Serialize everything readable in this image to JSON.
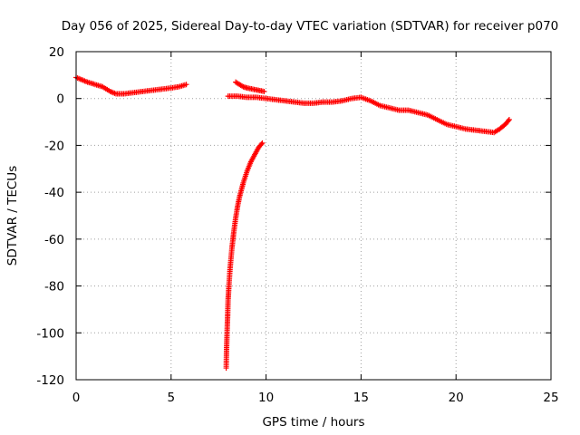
{
  "chart_data": {
    "type": "scatter",
    "title": "Day 056 of 2025, Sidereal Day-to-day VTEC variation (SDTVAR) for receiver p070",
    "xlabel": "GPS time / hours",
    "ylabel": "SDTVAR / TECUs",
    "xlim": [
      0,
      25
    ],
    "ylim": [
      -120,
      20
    ],
    "xticks": [
      "0",
      "5",
      "10",
      "15",
      "20",
      "25"
    ],
    "yticks": [
      "20",
      "0",
      "-20",
      "-40",
      "-60",
      "-80",
      "-100",
      "-120"
    ],
    "grid": true,
    "marker": "+",
    "color": "#ff0000",
    "series": [
      {
        "name": "segment-1",
        "x": [
          0.0,
          0.3,
          0.6,
          1.0,
          1.4,
          1.8,
          2.1,
          2.5,
          3.0,
          3.5,
          4.0,
          4.5,
          5.0,
          5.4,
          5.8
        ],
        "y": [
          9,
          8,
          7,
          6,
          5,
          3,
          2,
          2,
          2.5,
          3,
          3.5,
          4,
          4.5,
          5,
          6
        ]
      },
      {
        "name": "segment-2",
        "x": [
          8.4,
          8.6,
          8.8,
          9.0,
          9.3,
          9.6,
          9.9
        ],
        "y": [
          7,
          6,
          5,
          4.5,
          4,
          3.5,
          3
        ]
      },
      {
        "name": "segment-3",
        "x": [
          8.0,
          8.5,
          9.0,
          9.5,
          10.0,
          10.5,
          11.0,
          11.5,
          12.0,
          12.5,
          13.0,
          13.5,
          14.0,
          14.5,
          15.0,
          15.5,
          16.0,
          16.5,
          17.0,
          17.5,
          18.0,
          18.5,
          19.0,
          19.5,
          20.0,
          20.5,
          21.0,
          21.5,
          22.0,
          22.3,
          22.6,
          22.8
        ],
        "y": [
          1,
          1,
          0.5,
          0.5,
          0,
          -0.5,
          -1,
          -1.5,
          -2,
          -2,
          -1.5,
          -1.5,
          -1,
          0,
          0.5,
          -1,
          -3,
          -4,
          -5,
          -5,
          -6,
          -7,
          -9,
          -11,
          -12,
          -13,
          -13.5,
          -14,
          -14.5,
          -13,
          -11,
          -9
        ]
      },
      {
        "name": "segment-4",
        "x": [
          7.9,
          7.92,
          7.95,
          7.98,
          8.0,
          8.05,
          8.1,
          8.2,
          8.3,
          8.4,
          8.5,
          8.6,
          8.8,
          9.0,
          9.2,
          9.4,
          9.6,
          9.8
        ],
        "y": [
          -115,
          -107,
          -99,
          -92,
          -86,
          -79,
          -73,
          -64,
          -57,
          -51,
          -46,
          -42,
          -36,
          -31,
          -27,
          -24,
          -21,
          -19
        ]
      }
    ]
  }
}
